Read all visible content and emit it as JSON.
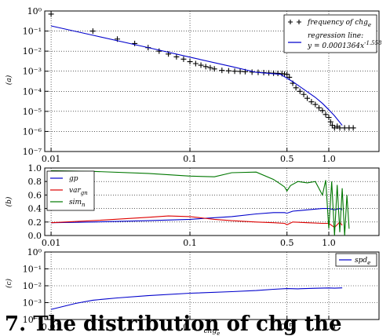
{
  "caption_fragment": "7. The distribution of chg the",
  "chart_data": [
    {
      "type": "scatter",
      "panel_label": "(a)",
      "xscale": "log",
      "yscale": "log",
      "xlim": [
        0.009,
        2.3
      ],
      "ylim": [
        1e-07,
        1
      ],
      "xticks": [
        0.01,
        0.1,
        0.5,
        1.0
      ],
      "xtick_labels": [
        "0.01",
        "0.1",
        "0.5",
        "1.0"
      ],
      "yticks": [
        1e-07,
        1e-06,
        1e-05,
        0.0001,
        0.001,
        0.01,
        0.1,
        1
      ],
      "ytick_labels": [
        "10⁻⁷",
        "10⁻⁶",
        "10⁻⁵",
        "10⁻⁴",
        "10⁻³",
        "10⁻²",
        "10⁻¹",
        "10⁰"
      ],
      "grid": true,
      "legend_position": "top-right",
      "series": [
        {
          "name": "frequency of chg_e",
          "color": "#000000",
          "marker": "+",
          "x": [
            0.01,
            0.02,
            0.03,
            0.04,
            0.05,
            0.06,
            0.07,
            0.08,
            0.09,
            0.1,
            0.11,
            0.12,
            0.13,
            0.14,
            0.15,
            0.17,
            0.19,
            0.21,
            0.23,
            0.25,
            0.28,
            0.31,
            0.34,
            0.37,
            0.4,
            0.43,
            0.46,
            0.48,
            0.5,
            0.52,
            0.55,
            0.58,
            0.62,
            0.66,
            0.7,
            0.75,
            0.8,
            0.85,
            0.9,
            0.95,
            1.0,
            1.03,
            1.06,
            1.1,
            1.15,
            1.2,
            1.3,
            1.4,
            1.5
          ],
          "y": [
            0.7,
            0.1,
            0.04,
            0.024,
            0.015,
            0.01,
            0.0072,
            0.0052,
            0.004,
            0.003,
            0.0024,
            0.002,
            0.0017,
            0.0015,
            0.0013,
            0.0011,
            0.00105,
            0.001,
            0.00098,
            0.00095,
            0.0009,
            0.00088,
            0.00085,
            0.00082,
            0.0008,
            0.00078,
            0.00075,
            0.00072,
            0.0007,
            0.0005,
            0.00025,
            0.00015,
            0.0001,
            7e-05,
            4.5e-05,
            3e-05,
            2.2e-05,
            1.5e-05,
            1.1e-05,
            7e-06,
            5e-06,
            3e-06,
            2e-06,
            1.5e-06,
            1.8e-06,
            1.5e-06,
            1.5e-06,
            1.5e-06,
            1.5e-06
          ]
        },
        {
          "name": "regression line: y = 0.0001364x^-1.558",
          "color": "#0000cc",
          "type": "line",
          "x": [
            0.01,
            0.02,
            0.05,
            0.1,
            0.2,
            0.3,
            0.4,
            0.45,
            0.5,
            0.55,
            0.6,
            0.7,
            0.8,
            0.9,
            1.0,
            1.1,
            1.25
          ],
          "y": [
            0.18,
            0.062,
            0.015,
            0.005,
            0.0017,
            0.00088,
            0.00075,
            0.0007,
            0.00045,
            0.0003,
            0.0002,
            9.5e-05,
            5e-05,
            2.5e-05,
            1.2e-05,
            6e-06,
            2e-06
          ]
        }
      ]
    },
    {
      "type": "line",
      "panel_label": "(b)",
      "xscale": "log",
      "xlim": [
        0.009,
        2.3
      ],
      "ylim": [
        0,
        1.0
      ],
      "xticks": [
        0.01,
        0.1,
        0.5,
        1.0
      ],
      "xtick_labels": [
        "0.01",
        "0.1",
        "0.5",
        "1.0"
      ],
      "yticks": [
        0,
        0.2,
        0.4,
        0.6,
        0.8,
        1.0
      ],
      "ytick_labels": [
        "0.0",
        "0.2",
        "0.4",
        "0.6",
        "0.8",
        "1.0"
      ],
      "grid": true,
      "legend_position": "top-left",
      "series": [
        {
          "name": "gp",
          "color": "#0000cc",
          "x": [
            0.01,
            0.02,
            0.05,
            0.1,
            0.2,
            0.3,
            0.4,
            0.48,
            0.5,
            0.55,
            0.7,
            0.9,
            1.0,
            1.1,
            1.2,
            1.25
          ],
          "y": [
            0.19,
            0.2,
            0.22,
            0.24,
            0.28,
            0.32,
            0.34,
            0.34,
            0.33,
            0.36,
            0.38,
            0.4,
            0.4,
            0.38,
            0.4,
            0.38
          ]
        },
        {
          "name": "var_gn",
          "color": "#dd0000",
          "x": [
            0.01,
            0.02,
            0.05,
            0.07,
            0.1,
            0.15,
            0.2,
            0.3,
            0.4,
            0.48,
            0.5,
            0.55,
            0.7,
            0.9,
            1.0,
            1.1,
            1.2,
            1.25
          ],
          "y": [
            0.19,
            0.22,
            0.27,
            0.29,
            0.28,
            0.24,
            0.22,
            0.2,
            0.19,
            0.18,
            0.16,
            0.2,
            0.19,
            0.18,
            0.18,
            0.12,
            0.2,
            0.15
          ]
        },
        {
          "name": "sim_n",
          "color": "#007700",
          "x": [
            0.01,
            0.02,
            0.05,
            0.1,
            0.15,
            0.2,
            0.3,
            0.4,
            0.45,
            0.48,
            0.5,
            0.53,
            0.6,
            0.7,
            0.8,
            0.9,
            0.95,
            1.0,
            1.05,
            1.1,
            1.15,
            1.2,
            1.25,
            1.3,
            1.35,
            1.4
          ],
          "y": [
            0.96,
            0.95,
            0.92,
            0.88,
            0.87,
            0.93,
            0.94,
            0.83,
            0.76,
            0.72,
            0.66,
            0.74,
            0.8,
            0.78,
            0.8,
            0.6,
            0.82,
            0.1,
            0.8,
            0.0,
            0.75,
            0.05,
            0.7,
            0.0,
            0.6,
            0.1
          ]
        }
      ]
    },
    {
      "type": "line",
      "panel_label": "(c)",
      "xscale": "log",
      "yscale": "log",
      "xlim": [
        0.009,
        2.3
      ],
      "ylim": [
        0.0001,
        1
      ],
      "xticks": [
        0.01,
        0.1,
        0.5,
        1.0
      ],
      "xtick_labels": [
        "0.01",
        "0.1",
        "0.5",
        "1.0"
      ],
      "yticks": [
        0.0001,
        0.001,
        0.01,
        0.1,
        1
      ],
      "ytick_labels": [
        "10⁻⁴",
        "10⁻³",
        "10⁻²",
        "10⁻¹",
        "10⁰"
      ],
      "xlabel": "chg_e",
      "grid": true,
      "legend_position": "top-right",
      "series": [
        {
          "name": "spd_e",
          "color": "#0000cc",
          "x": [
            0.01,
            0.015,
            0.02,
            0.03,
            0.05,
            0.1,
            0.2,
            0.3,
            0.4,
            0.5,
            0.6,
            0.8,
            1.0,
            1.1,
            1.25
          ],
          "y": [
            0.0004,
            0.0009,
            0.0014,
            0.0019,
            0.0026,
            0.0036,
            0.0045,
            0.0052,
            0.0062,
            0.0068,
            0.0066,
            0.0071,
            0.0074,
            0.0072,
            0.0075
          ]
        }
      ]
    }
  ]
}
